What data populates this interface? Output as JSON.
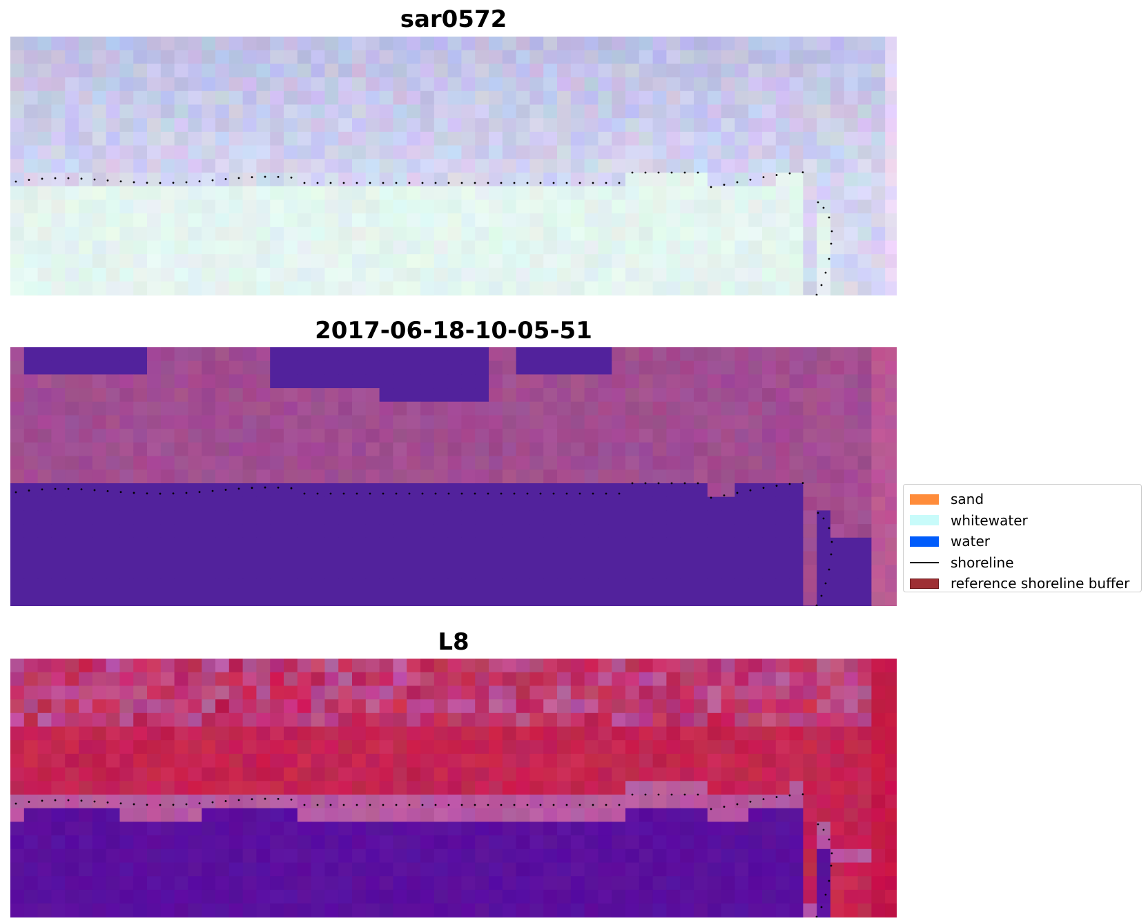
{
  "panels": [
    {
      "title": "sar0572",
      "colors": {
        "upper": "#bdbfe6",
        "lower": "#e4f5f0",
        "edge": "#ead7f6"
      }
    },
    {
      "title": "2017-06-18-10-05-51",
      "colors": {
        "upper": "#a14d91",
        "lower": "#52229c",
        "edge": "#bb5896"
      }
    },
    {
      "title": "L8",
      "colors": {
        "upper": "#c42452",
        "band": "#b85aa0",
        "lower": "#5a0f9e",
        "edge": "#c41648"
      }
    }
  ],
  "legend": {
    "items": [
      {
        "label": "sand",
        "color": "#ff8c3a",
        "kind": "patch"
      },
      {
        "label": "whitewater",
        "color": "#c8fbfa",
        "kind": "patch"
      },
      {
        "label": "water",
        "color": "#005cfb",
        "kind": "patch"
      },
      {
        "label": "shoreline",
        "color": "#000000",
        "kind": "line"
      },
      {
        "label": "reference shoreline buffer",
        "color": "#9e2f33",
        "kind": "patch",
        "edge": "#6b1a1c"
      }
    ]
  }
}
